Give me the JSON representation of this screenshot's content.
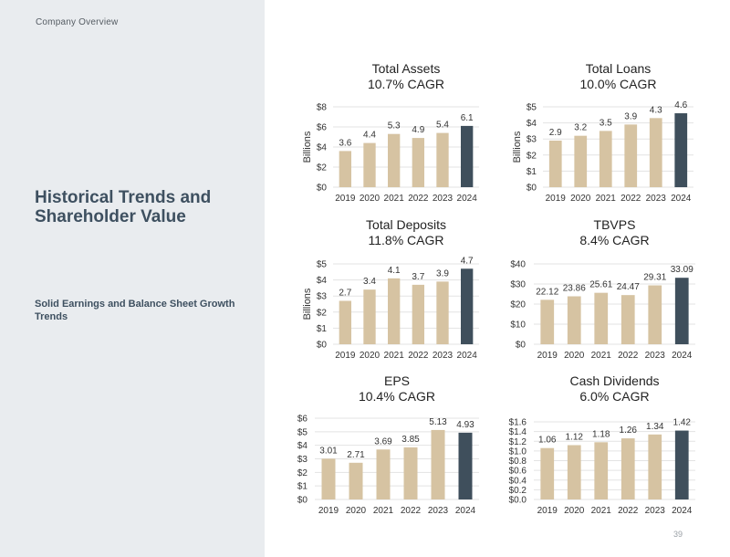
{
  "sidebar": {
    "section_label": "Company Overview",
    "title": "Historical Trends and Shareholder Value",
    "subtitle": "Solid Earnings and Balance Sheet Growth Trends"
  },
  "page_number": "39",
  "colors": {
    "bar": "#d6c3a2",
    "highlight_bar": "#3f4f5c",
    "sidebar_bg": "#e9ecef",
    "title_text": "#3e5060"
  },
  "chart_data": [
    {
      "id": "total-assets",
      "type": "bar",
      "title": "Total Assets",
      "subtitle": "10.7% CAGR",
      "categories": [
        "2019",
        "2020",
        "2021",
        "2022",
        "2023",
        "2024"
      ],
      "values": [
        3.6,
        4.4,
        5.3,
        4.9,
        5.4,
        6.1
      ],
      "value_labels": [
        "3.6",
        "4.4",
        "5.3",
        "4.9",
        "5.4",
        "6.1"
      ],
      "ylabel": "Billions",
      "ylim": [
        0,
        8
      ],
      "yticks": [
        0,
        2,
        4,
        6,
        8
      ],
      "ytick_labels": [
        "$0",
        "$2",
        "$4",
        "$6",
        "$8"
      ],
      "grid": true,
      "highlight_index": 5
    },
    {
      "id": "total-loans",
      "type": "bar",
      "title": "Total Loans",
      "subtitle": "10.0% CAGR",
      "categories": [
        "2019",
        "2020",
        "2021",
        "2022",
        "2023",
        "2024"
      ],
      "values": [
        2.9,
        3.2,
        3.5,
        3.9,
        4.3,
        4.6
      ],
      "value_labels": [
        "2.9",
        "3.2",
        "3.5",
        "3.9",
        "4.3",
        "4.6"
      ],
      "ylabel": "Billions",
      "ylim": [
        0,
        5
      ],
      "yticks": [
        0,
        1,
        2,
        3,
        4,
        5
      ],
      "ytick_labels": [
        "$0",
        "$1",
        "$2",
        "$3",
        "$4",
        "$5"
      ],
      "grid": true,
      "highlight_index": 5
    },
    {
      "id": "total-deposits",
      "type": "bar",
      "title": "Total Deposits",
      "subtitle": "11.8% CAGR",
      "categories": [
        "2019",
        "2020",
        "2021",
        "2022",
        "2023",
        "2024"
      ],
      "values": [
        2.7,
        3.4,
        4.1,
        3.7,
        3.9,
        4.7
      ],
      "value_labels": [
        "2.7",
        "3.4",
        "4.1",
        "3.7",
        "3.9",
        "4.7"
      ],
      "ylabel": "Billions",
      "ylim": [
        0,
        5
      ],
      "yticks": [
        0,
        1,
        2,
        3,
        4,
        5
      ],
      "ytick_labels": [
        "$0",
        "$1",
        "$2",
        "$3",
        "$4",
        "$5"
      ],
      "grid": true,
      "highlight_index": 5
    },
    {
      "id": "tbvps",
      "type": "bar",
      "title": "TBVPS",
      "subtitle": "8.4% CAGR",
      "categories": [
        "2019",
        "2020",
        "2021",
        "2022",
        "2023",
        "2024"
      ],
      "values": [
        22.12,
        23.86,
        25.61,
        24.47,
        29.31,
        33.09
      ],
      "value_labels": [
        "22.12",
        "23.86",
        "25.61",
        "24.47",
        "29.31",
        "33.09"
      ],
      "ylabel": "",
      "ylim": [
        0,
        40
      ],
      "yticks": [
        0,
        10,
        20,
        30,
        40
      ],
      "ytick_labels": [
        "$0",
        "$10",
        "$20",
        "$30",
        "$40"
      ],
      "grid": true,
      "highlight_index": 5
    },
    {
      "id": "eps",
      "type": "bar",
      "title": "EPS",
      "subtitle": "10.4% CAGR",
      "categories": [
        "2019",
        "2020",
        "2021",
        "2022",
        "2023",
        "2024"
      ],
      "values": [
        3.01,
        2.71,
        3.69,
        3.85,
        5.13,
        4.93
      ],
      "value_labels": [
        "3.01",
        "2.71",
        "3.69",
        "3.85",
        "5.13",
        "4.93"
      ],
      "ylabel": "",
      "ylim": [
        0,
        6
      ],
      "yticks": [
        0,
        1,
        2,
        3,
        4,
        5,
        6
      ],
      "ytick_labels": [
        "$0",
        "$1",
        "$2",
        "$3",
        "$4",
        "$5",
        "$6"
      ],
      "grid": true,
      "highlight_index": 5
    },
    {
      "id": "cash-dividends",
      "type": "bar",
      "title": "Cash Dividends",
      "subtitle": "6.0% CAGR",
      "categories": [
        "2019",
        "2020",
        "2021",
        "2022",
        "2023",
        "2024"
      ],
      "values": [
        1.06,
        1.12,
        1.18,
        1.26,
        1.34,
        1.42
      ],
      "value_labels": [
        "1.06",
        "1.12",
        "1.18",
        "1.26",
        "1.34",
        "1.42"
      ],
      "ylabel": "",
      "ylim": [
        0,
        1.6
      ],
      "yticks": [
        0,
        0.2,
        0.4,
        0.6,
        0.8,
        1.0,
        1.2,
        1.4,
        1.6
      ],
      "ytick_labels": [
        "$0.0",
        "$0.2",
        "$0.4",
        "$0.6",
        "$0.8",
        "$1.0",
        "$1.2",
        "$1.4",
        "$1.6"
      ],
      "grid": true,
      "highlight_index": 5
    }
  ]
}
